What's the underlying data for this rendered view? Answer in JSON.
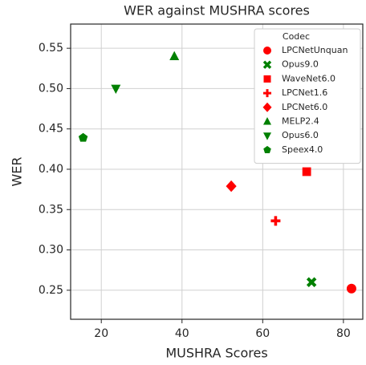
{
  "chart_data": {
    "type": "scatter",
    "title": "WER against MUSHRA scores",
    "x_label": "MUSHRA Scores",
    "y_label": "WER",
    "legend_title": "Codec",
    "legend": "upper right",
    "grid": true,
    "xlim": [
      12.4,
      84.8
    ],
    "ylim": [
      0.214,
      0.58
    ],
    "xticks": [
      20,
      40,
      60,
      80
    ],
    "yticks": [
      0.25,
      {
        "value": 0.3,
        "label": "0.30"
      },
      0.35,
      {
        "value": 0.4,
        "label": "0.40"
      },
      0.45,
      {
        "value": 0.5,
        "label": "0.50"
      },
      0.55
    ],
    "series": [
      {
        "name": "LPCNetUnquan",
        "color": "#ff0000",
        "marker": "circle",
        "x": [
          82.0
        ],
        "values": [
          0.252
        ]
      },
      {
        "name": "Opus9.0",
        "color": "#008000",
        "marker": "x",
        "x": [
          72.1
        ],
        "values": [
          0.26
        ]
      },
      {
        "name": "WaveNet6.0",
        "color": "#ff0000",
        "marker": "square",
        "x": [
          70.9
        ],
        "values": [
          0.397
        ]
      },
      {
        "name": "LPCNet1.6",
        "color": "#ff0000",
        "marker": "plus",
        "x": [
          63.2
        ],
        "values": [
          0.336
        ]
      },
      {
        "name": "LPCNet6.0",
        "color": "#ff0000",
        "marker": "diamond",
        "x": [
          52.2
        ],
        "values": [
          0.379
        ]
      },
      {
        "name": "MELP2.4",
        "color": "#008000",
        "marker": "triangle-up",
        "x": [
          38.1
        ],
        "values": [
          0.54
        ]
      },
      {
        "name": "Opus6.0",
        "color": "#008000",
        "marker": "triangle-down",
        "x": [
          23.6
        ],
        "values": [
          0.5
        ]
      },
      {
        "name": "Speex4.0",
        "color": "#008000",
        "marker": "pentagon",
        "x": [
          15.5
        ],
        "values": [
          0.439
        ]
      }
    ]
  }
}
